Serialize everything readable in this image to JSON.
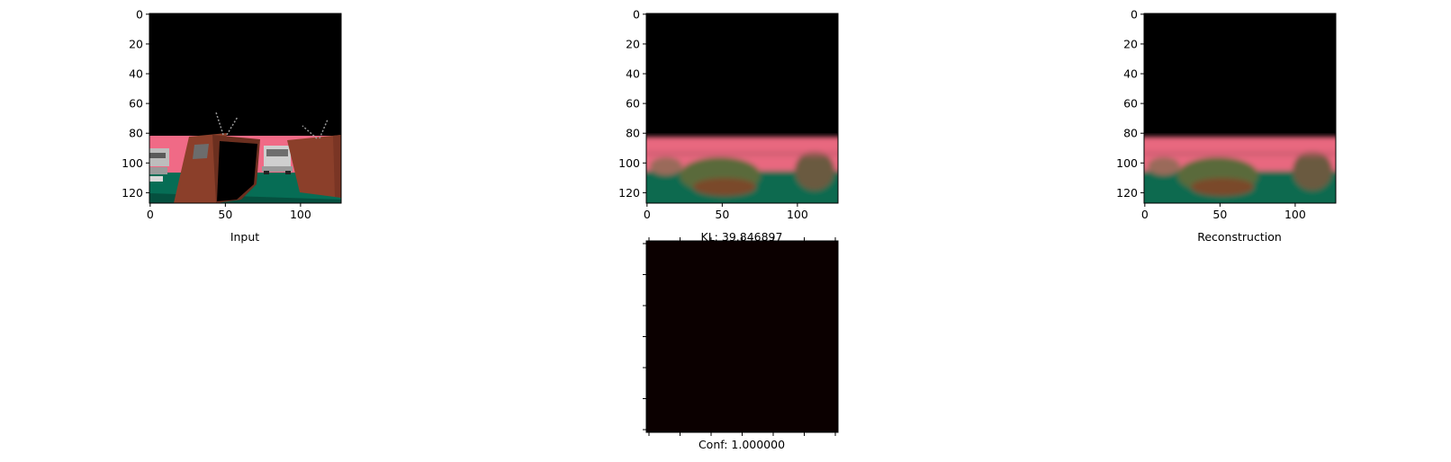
{
  "panels": [
    {
      "id": "input",
      "xlabel": "Input",
      "xticks": [
        "0",
        "50",
        "100"
      ],
      "yticks": [
        "0",
        "20",
        "40",
        "60",
        "80",
        "100",
        "120"
      ]
    },
    {
      "id": "generated",
      "xlabel": "KL: 39.846897",
      "xticks": [
        "0",
        "50",
        "100"
      ],
      "yticks": [
        "0",
        "20",
        "40",
        "60",
        "80",
        "100",
        "120"
      ]
    },
    {
      "id": "reconstruction",
      "xlabel": "Reconstruction",
      "xticks": [
        "0",
        "50",
        "100"
      ],
      "yticks": [
        "0",
        "20",
        "40",
        "60",
        "80",
        "100",
        "120"
      ]
    },
    {
      "id": "confidence",
      "xlabel": "Conf: 1.000000"
    }
  ],
  "colors": {
    "background": "#000000",
    "sky_pink": "#f06a86",
    "floor_green": "#066d55",
    "tv_brown": "#8b3f2a",
    "car_silver": "#c8c8c8",
    "confidence_map": "#0b0000"
  },
  "chart_data": [
    {
      "type": "image",
      "title": "",
      "xlabel": "Input",
      "xlim": [
        0,
        127
      ],
      "ylim": [
        127,
        0
      ],
      "xticks": [
        0,
        50,
        100
      ],
      "yticks": [
        0,
        20,
        40,
        60,
        80,
        100,
        120
      ]
    },
    {
      "type": "image",
      "title": "",
      "xlabel": "KL: 39.846897",
      "xlim": [
        0,
        127
      ],
      "ylim": [
        127,
        0
      ],
      "xticks": [
        0,
        50,
        100
      ],
      "yticks": [
        0,
        20,
        40,
        60,
        80,
        100,
        120
      ]
    },
    {
      "type": "image",
      "title": "",
      "xlabel": "Reconstruction",
      "xlim": [
        0,
        127
      ],
      "ylim": [
        127,
        0
      ],
      "xticks": [
        0,
        50,
        100
      ],
      "yticks": [
        0,
        20,
        40,
        60,
        80,
        100,
        120
      ]
    },
    {
      "type": "heatmap",
      "title": "",
      "xlabel": "Conf: 1.000000",
      "value": 1.0
    }
  ]
}
